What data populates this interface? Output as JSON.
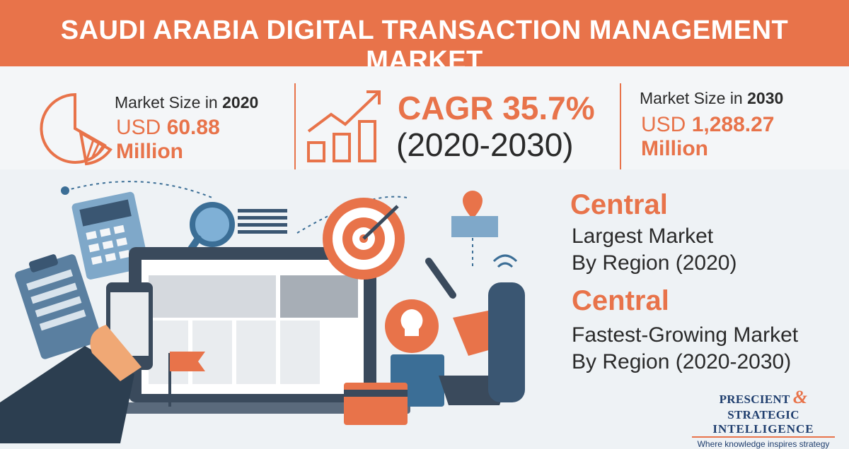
{
  "title": "SAUDI ARABIA DIGITAL TRANSACTION MANAGEMENT MARKET",
  "stats": {
    "size_2020": {
      "label_prefix": "Market Size in ",
      "year": "2020",
      "currency": "USD ",
      "amount": "60.88",
      "unit": "Million"
    },
    "cagr": {
      "label": "CAGR 35.7%",
      "period": "(2020-2030)"
    },
    "size_2030": {
      "label_prefix": "Market Size in ",
      "year": "2030",
      "currency": "USD ",
      "amount": "1,288.27",
      "unit": "Million"
    }
  },
  "regions": {
    "largest": {
      "value": "Central",
      "line1": "Largest Market",
      "line2": "By Region (2020)"
    },
    "fastest": {
      "value": "Central",
      "line1": "Fastest-Growing Market",
      "line2": "By Region (2020-2030)"
    }
  },
  "logo": {
    "line1a": "PRESCIENT",
    "amp": "&",
    "line1b": "STRATEGIC",
    "line2": "INTELLIGENCE",
    "tagline": "Where knowledge inspires strategy"
  },
  "colors": {
    "accent": "#e8734a",
    "text": "#2a2a2a",
    "navy": "#1f3e6e",
    "background": "#eef2f5"
  }
}
